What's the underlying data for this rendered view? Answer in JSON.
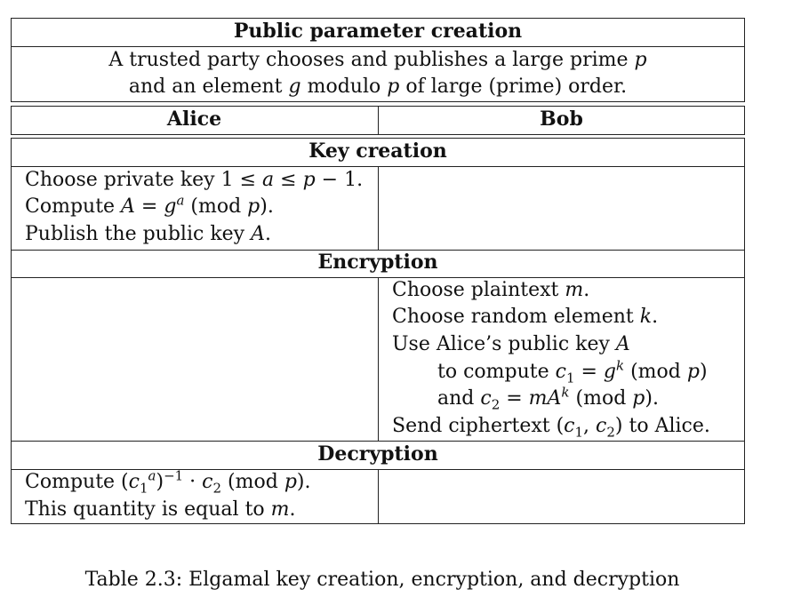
{
  "table": {
    "section_public": {
      "title": "Public parameter creation",
      "line1_html": "A trusted party chooses and publishes a large prime <i>p</i>",
      "line2_html": "and an element <i>g</i> modulo <i>p</i> of large (prime) order."
    },
    "headers": {
      "alice": "Alice",
      "bob": "Bob"
    },
    "section_key": {
      "title": "Key creation",
      "alice_lines_html": [
        "Choose private key 1 ≤ <i>a</i> ≤ <i>p</i> − 1.",
        "Compute <i>A</i> = <i>g</i><sup><i>a</i></sup> (mod <i>p</i>).",
        "Publish the public key <i>A</i>."
      ]
    },
    "section_enc": {
      "title": "Encryption",
      "bob_lines_html": [
        "Choose plaintext <i>m</i>.",
        "Choose random element <i>k</i>.",
        "Use Alice’s public key <i>A</i>",
        "to compute <i>c</i><sub>1</sub> = <i>g</i><sup><i>k</i></sup> (mod <i>p</i>)",
        "and <i>c</i><sub>2</sub> = <i>mA</i><sup><i>k</i></sup> (mod <i>p</i>).",
        "Send ciphertext (<i>c</i><sub>1</sub>, <i>c</i><sub>2</sub>) to Alice."
      ]
    },
    "section_dec": {
      "title": "Decryption",
      "alice_lines_html": [
        "Compute (<i>c</i><sub>1</sub><sup><i>a</i></sup>)<sup>−1</sup> · <i>c</i><sub>2</sub> (mod <i>p</i>).",
        "This quantity is equal to <i>m</i>."
      ]
    }
  },
  "caption": "Table 2.3: Elgamal key creation, encryption, and decryption"
}
